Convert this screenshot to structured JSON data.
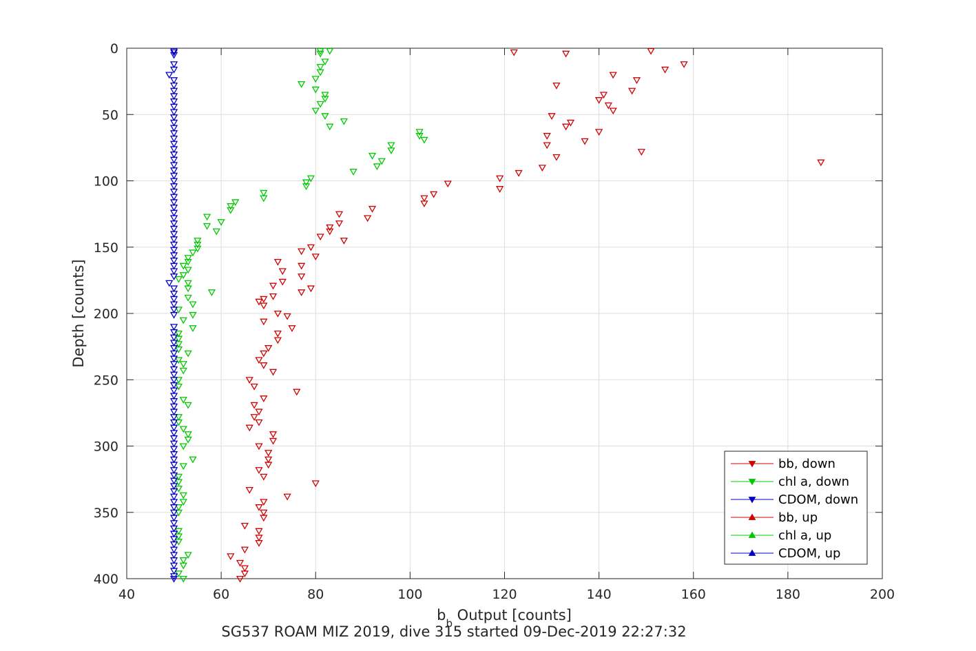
{
  "chart_data": {
    "type": "scatter",
    "title": "",
    "xlabel_main": "b",
    "xlabel_sub": "b",
    "xlabel_rest": " Output [counts]",
    "ylabel": "Depth [counts]",
    "caption": "SG537 ROAM MIZ 2019, dive 315 started 09-Dec-2019 22:27:32",
    "xlim": [
      40,
      200
    ],
    "ylim": [
      0,
      400
    ],
    "y_reversed": true,
    "grid": true,
    "legend_position": "bottom-right",
    "x_ticks": [
      40,
      60,
      80,
      100,
      120,
      140,
      160,
      180,
      200
    ],
    "y_ticks": [
      0,
      50,
      100,
      150,
      200,
      250,
      300,
      350,
      400
    ],
    "colors": {
      "bb": "#d00000",
      "chl": "#00c800",
      "cdom": "#0000c8"
    },
    "series": [
      {
        "name": "bb, down",
        "marker": "triangle-down",
        "color": "#d00000",
        "points": [
          [
            151,
            2
          ],
          [
            122,
            3
          ],
          [
            133,
            4
          ],
          [
            158,
            12
          ],
          [
            154,
            16
          ],
          [
            143,
            20
          ],
          [
            148,
            24
          ],
          [
            131,
            28
          ],
          [
            147,
            32
          ],
          [
            141,
            35
          ],
          [
            140,
            39
          ],
          [
            142,
            43
          ],
          [
            143,
            47
          ],
          [
            130,
            51
          ],
          [
            134,
            56
          ],
          [
            133,
            59
          ],
          [
            140,
            63
          ],
          [
            129,
            66
          ],
          [
            137,
            70
          ],
          [
            129,
            73
          ],
          [
            149,
            78
          ],
          [
            131,
            82
          ],
          [
            187,
            86
          ],
          [
            128,
            90
          ],
          [
            123,
            94
          ],
          [
            119,
            98
          ],
          [
            108,
            102
          ],
          [
            119,
            106
          ],
          [
            105,
            110
          ],
          [
            103,
            113
          ],
          [
            103,
            117
          ],
          [
            92,
            121
          ],
          [
            85,
            125
          ],
          [
            91,
            128
          ],
          [
            85,
            132
          ],
          [
            83,
            135
          ],
          [
            83,
            138
          ],
          [
            81,
            142
          ],
          [
            86,
            145
          ],
          [
            79,
            150
          ],
          [
            77,
            153
          ],
          [
            80,
            157
          ],
          [
            72,
            161
          ],
          [
            77,
            164
          ],
          [
            73,
            168
          ],
          [
            77,
            172
          ],
          [
            73,
            176
          ],
          [
            71,
            179
          ],
          [
            79,
            181
          ],
          [
            77,
            184
          ],
          [
            71,
            187
          ],
          [
            69,
            189
          ],
          [
            68,
            191
          ],
          [
            69,
            194
          ],
          [
            72,
            200
          ],
          [
            74,
            202
          ],
          [
            69,
            206
          ],
          [
            75,
            211
          ],
          [
            72,
            215
          ],
          [
            72,
            220
          ],
          [
            70,
            226
          ],
          [
            69,
            230
          ],
          [
            68,
            235
          ],
          [
            69,
            239
          ],
          [
            71,
            244
          ],
          [
            66,
            250
          ],
          [
            67,
            255
          ],
          [
            76,
            259
          ],
          [
            69,
            264
          ],
          [
            67,
            269
          ],
          [
            68,
            274
          ],
          [
            67,
            278
          ],
          [
            68,
            282
          ],
          [
            66,
            286
          ],
          [
            71,
            291
          ],
          [
            71,
            296
          ],
          [
            68,
            300
          ],
          [
            70,
            305
          ],
          [
            70,
            310
          ],
          [
            70,
            314
          ],
          [
            68,
            318
          ],
          [
            69,
            323
          ],
          [
            80,
            328
          ],
          [
            66,
            333
          ],
          [
            74,
            338
          ],
          [
            69,
            342
          ],
          [
            68,
            346
          ],
          [
            69,
            350
          ],
          [
            69,
            354
          ],
          [
            65,
            360
          ],
          [
            68,
            364
          ],
          [
            68,
            369
          ],
          [
            68,
            373
          ],
          [
            65,
            378
          ],
          [
            62,
            383
          ],
          [
            64,
            388
          ],
          [
            65,
            392
          ],
          [
            65,
            396
          ],
          [
            64,
            400
          ]
        ]
      },
      {
        "name": "chl a, down",
        "marker": "triangle-down",
        "color": "#00c800",
        "points": [
          [
            81,
            2
          ],
          [
            83,
            2
          ],
          [
            81,
            4
          ],
          [
            82,
            10
          ],
          [
            81,
            14
          ],
          [
            81,
            18
          ],
          [
            80,
            23
          ],
          [
            77,
            27
          ],
          [
            80,
            31
          ],
          [
            82,
            35
          ],
          [
            82,
            38
          ],
          [
            81,
            42
          ],
          [
            80,
            47
          ],
          [
            82,
            51
          ],
          [
            86,
            55
          ],
          [
            83,
            59
          ],
          [
            102,
            63
          ],
          [
            102,
            66
          ],
          [
            103,
            69
          ],
          [
            96,
            73
          ],
          [
            96,
            77
          ],
          [
            92,
            81
          ],
          [
            94,
            85
          ],
          [
            93,
            89
          ],
          [
            88,
            93
          ],
          [
            79,
            98
          ],
          [
            78,
            101
          ],
          [
            78,
            104
          ],
          [
            69,
            109
          ],
          [
            69,
            113
          ],
          [
            63,
            116
          ],
          [
            62,
            119
          ],
          [
            62,
            122
          ],
          [
            57,
            127
          ],
          [
            60,
            131
          ],
          [
            57,
            134
          ],
          [
            59,
            138
          ],
          [
            55,
            145
          ],
          [
            55,
            148
          ],
          [
            55,
            151
          ],
          [
            54,
            154
          ],
          [
            53,
            158
          ],
          [
            53,
            161
          ],
          [
            52,
            164
          ],
          [
            53,
            167
          ],
          [
            52,
            171
          ],
          [
            51,
            174
          ],
          [
            53,
            177
          ],
          [
            53,
            181
          ],
          [
            58,
            184
          ],
          [
            53,
            188
          ],
          [
            54,
            193
          ],
          [
            51,
            197
          ],
          [
            54,
            201
          ],
          [
            52,
            205
          ],
          [
            54,
            211
          ],
          [
            51,
            215
          ],
          [
            51,
            219
          ],
          [
            51,
            223
          ],
          [
            51,
            227
          ],
          [
            53,
            230
          ],
          [
            51,
            235
          ],
          [
            52,
            238
          ],
          [
            52,
            243
          ],
          [
            51,
            250
          ],
          [
            51,
            255
          ],
          [
            52,
            265
          ],
          [
            53,
            269
          ],
          [
            51,
            278
          ],
          [
            51,
            282
          ],
          [
            52,
            287
          ],
          [
            53,
            291
          ],
          [
            53,
            295
          ],
          [
            52,
            300
          ],
          [
            54,
            310
          ],
          [
            52,
            315
          ],
          [
            51,
            323
          ],
          [
            51,
            327
          ],
          [
            51,
            332
          ],
          [
            52,
            337
          ],
          [
            52,
            342
          ],
          [
            51,
            346
          ],
          [
            51,
            350
          ],
          [
            51,
            364
          ],
          [
            51,
            368
          ],
          [
            51,
            372
          ],
          [
            53,
            382
          ],
          [
            52,
            386
          ],
          [
            52,
            390
          ],
          [
            51,
            396
          ],
          [
            52,
            400
          ]
        ]
      },
      {
        "name": "CDOM, down",
        "marker": "triangle-down",
        "color": "#0000c8",
        "points": [
          [
            50,
            2
          ],
          [
            50,
            3
          ],
          [
            50,
            5
          ],
          [
            50,
            12
          ],
          [
            50,
            16
          ],
          [
            49,
            20
          ],
          [
            50,
            24
          ],
          [
            50,
            28
          ],
          [
            50,
            32
          ],
          [
            50,
            36
          ],
          [
            50,
            40
          ],
          [
            50,
            44
          ],
          [
            50,
            48
          ],
          [
            50,
            52
          ],
          [
            50,
            56
          ],
          [
            50,
            60
          ],
          [
            50,
            64
          ],
          [
            50,
            68
          ],
          [
            50,
            72
          ],
          [
            50,
            76
          ],
          [
            50,
            80
          ],
          [
            50,
            84
          ],
          [
            50,
            88
          ],
          [
            50,
            92
          ],
          [
            50,
            96
          ],
          [
            50,
            100
          ],
          [
            50,
            104
          ],
          [
            50,
            108
          ],
          [
            50,
            112
          ],
          [
            50,
            116
          ],
          [
            50,
            120
          ],
          [
            50,
            124
          ],
          [
            50,
            128
          ],
          [
            50,
            132
          ],
          [
            50,
            136
          ],
          [
            50,
            140
          ],
          [
            50,
            144
          ],
          [
            50,
            148
          ],
          [
            50,
            152
          ],
          [
            50,
            156
          ],
          [
            50,
            160
          ],
          [
            50,
            164
          ],
          [
            50,
            168
          ],
          [
            50,
            172
          ],
          [
            49,
            177
          ],
          [
            50,
            181
          ],
          [
            50,
            185
          ],
          [
            50,
            189
          ],
          [
            50,
            193
          ],
          [
            50,
            197
          ],
          [
            50,
            201
          ],
          [
            50,
            210
          ],
          [
            50,
            214
          ],
          [
            50,
            218
          ],
          [
            50,
            222
          ],
          [
            50,
            226
          ],
          [
            50,
            230
          ],
          [
            50,
            234
          ],
          [
            50,
            238
          ],
          [
            50,
            242
          ],
          [
            50,
            246
          ],
          [
            50,
            250
          ],
          [
            50,
            254
          ],
          [
            50,
            258
          ],
          [
            50,
            262
          ],
          [
            50,
            266
          ],
          [
            50,
            270
          ],
          [
            50,
            274
          ],
          [
            50,
            278
          ],
          [
            50,
            282
          ],
          [
            50,
            286
          ],
          [
            50,
            290
          ],
          [
            50,
            294
          ],
          [
            50,
            298
          ],
          [
            50,
            302
          ],
          [
            50,
            306
          ],
          [
            50,
            310
          ],
          [
            50,
            314
          ],
          [
            50,
            318
          ],
          [
            50,
            322
          ],
          [
            50,
            326
          ],
          [
            50,
            330
          ],
          [
            50,
            334
          ],
          [
            50,
            338
          ],
          [
            50,
            342
          ],
          [
            50,
            346
          ],
          [
            50,
            350
          ],
          [
            50,
            354
          ],
          [
            50,
            358
          ],
          [
            50,
            362
          ],
          [
            50,
            366
          ],
          [
            50,
            370
          ],
          [
            50,
            374
          ],
          [
            50,
            378
          ],
          [
            50,
            382
          ],
          [
            50,
            386
          ],
          [
            50,
            390
          ],
          [
            50,
            394
          ],
          [
            50,
            398
          ],
          [
            50,
            400
          ]
        ]
      },
      {
        "name": "bb, up",
        "marker": "triangle-up",
        "color": "#d00000",
        "points": []
      },
      {
        "name": "chl a, up",
        "marker": "triangle-up",
        "color": "#00c800",
        "points": []
      },
      {
        "name": "CDOM, up",
        "marker": "triangle-up",
        "color": "#0000c8",
        "points": []
      }
    ]
  }
}
